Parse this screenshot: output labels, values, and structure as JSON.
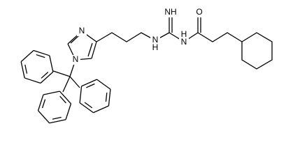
{
  "labels": [
    "N",
    "N",
    "NH",
    "N",
    "H",
    "H",
    "N",
    "O"
  ]
}
